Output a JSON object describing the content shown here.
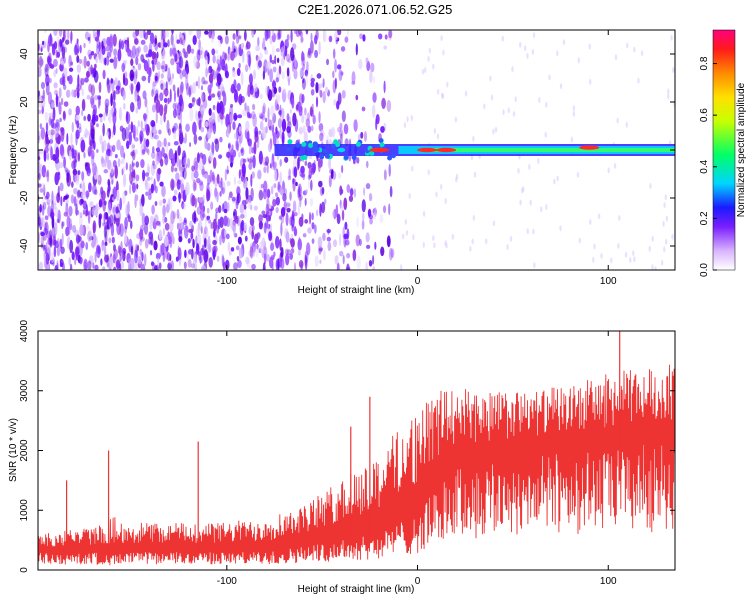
{
  "title": "C2E1.2026.071.06.52.G25",
  "chart_data": [
    {
      "type": "heatmap",
      "xlabel": "Height of straight line (km)",
      "ylabel": "Frequency (Hz)",
      "xlim": [
        -199,
        135
      ],
      "ylim": [
        -50,
        50
      ],
      "xticks": [
        -100,
        0,
        100
      ],
      "yticks": [
        -40,
        -20,
        0,
        20,
        40
      ],
      "colorbar": {
        "label": "Normalized spectral amplitude",
        "range": [
          0.0,
          0.93
        ],
        "ticks": [
          0.0,
          0.2,
          0.4,
          0.6,
          0.8
        ]
      },
      "description_points": {
        "noise_region_x": [
          -199,
          -10
        ],
        "signal_band_x": [
          -75,
          135
        ],
        "signal_band_freq_hz": 0,
        "strong_peaks": [
          {
            "x": -40,
            "y": 0,
            "amp": 0.25
          },
          {
            "x": -20,
            "y": 0,
            "amp": 0.85
          },
          {
            "x": 5,
            "y": 0,
            "amp": 0.9
          },
          {
            "x": 15,
            "y": 0,
            "amp": 0.8
          },
          {
            "x": 90,
            "y": 1,
            "amp": 0.85
          }
        ]
      }
    },
    {
      "type": "line",
      "xlabel": "Height of straight line (km)",
      "ylabel": "SNR (10 * v/v)",
      "xlim": [
        -199,
        135
      ],
      "ylim": [
        0,
        4000
      ],
      "xticks": [
        -100,
        0,
        100
      ],
      "yticks": [
        0,
        1000,
        2000,
        3000,
        4000
      ],
      "color": "#ee3333",
      "envelope": {
        "x": [
          -199,
          -185,
          -170,
          -160,
          -150,
          -120,
          -100,
          -80,
          -60,
          -40,
          -20,
          -10,
          0,
          10,
          20,
          40,
          60,
          80,
          100,
          120,
          135
        ],
        "low": [
          300,
          250,
          300,
          250,
          300,
          300,
          300,
          300,
          400,
          500,
          600,
          800,
          900,
          1400,
          1700,
          1800,
          1900,
          2000,
          2000,
          2100,
          2100
        ],
        "high": [
          600,
          700,
          700,
          900,
          800,
          800,
          800,
          900,
          1100,
          1500,
          2000,
          2400,
          2700,
          3000,
          3100,
          3000,
          3000,
          3100,
          3300,
          3400,
          3500
        ]
      },
      "spikes": [
        {
          "x": -184,
          "y": 1500
        },
        {
          "x": -162,
          "y": 2000
        },
        {
          "x": -115,
          "y": 2150
        },
        {
          "x": -35,
          "y": 2400
        },
        {
          "x": -25,
          "y": 2900
        },
        {
          "x": 106,
          "y": 4000
        }
      ]
    }
  ]
}
